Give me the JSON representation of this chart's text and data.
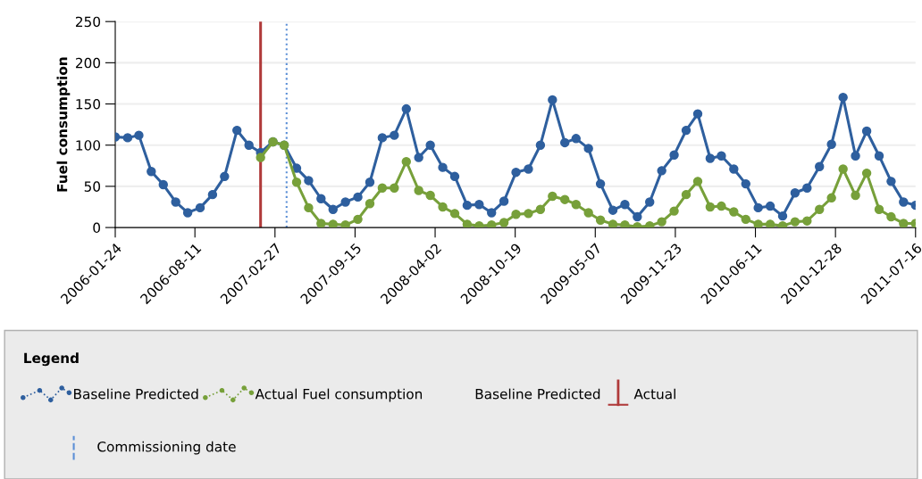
{
  "chart_data": {
    "type": "line",
    "ylabel": "Fuel consumption",
    "x": [
      "2006-01-24",
      "2006-02-24",
      "2006-03-24",
      "2006-04-24",
      "2006-05-24",
      "2006-06-24",
      "2006-07-24",
      "2006-08-24",
      "2006-09-24",
      "2006-10-24",
      "2006-11-24",
      "2006-12-24",
      "2007-01-22",
      "2007-02-22",
      "2007-03-22",
      "2007-04-22",
      "2007-05-22",
      "2007-06-22",
      "2007-07-22",
      "2007-08-22",
      "2007-09-22",
      "2007-10-22",
      "2007-11-22",
      "2007-12-22",
      "2008-01-21",
      "2008-02-21",
      "2008-03-21",
      "2008-04-21",
      "2008-05-21",
      "2008-06-21",
      "2008-07-21",
      "2008-08-21",
      "2008-09-21",
      "2008-10-21",
      "2008-11-21",
      "2008-12-21",
      "2009-01-20",
      "2009-02-20",
      "2009-03-20",
      "2009-04-20",
      "2009-05-20",
      "2009-06-20",
      "2009-07-20",
      "2009-08-20",
      "2009-09-20",
      "2009-10-20",
      "2009-11-20",
      "2009-12-20",
      "2010-01-18",
      "2010-02-18",
      "2010-03-18",
      "2010-04-18",
      "2010-05-18",
      "2010-06-18",
      "2010-07-18",
      "2010-08-18",
      "2010-09-18",
      "2010-10-18",
      "2010-11-18",
      "2010-12-18",
      "2011-01-16",
      "2011-02-16",
      "2011-03-16",
      "2011-04-16",
      "2011-05-16",
      "2011-06-16",
      "2011-07-16"
    ],
    "series": [
      {
        "name": "Baseline Predicted",
        "color": "#2e5f9e",
        "values": [
          110,
          109,
          112,
          68,
          52,
          31,
          18,
          24,
          40,
          62,
          118,
          100,
          91,
          104,
          100,
          72,
          57,
          35,
          22,
          31,
          37,
          55,
          109,
          112,
          144,
          85,
          100,
          73,
          62,
          27,
          28,
          18,
          32,
          67,
          71,
          100,
          155,
          103,
          108,
          96,
          53,
          21,
          28,
          13,
          31,
          69,
          88,
          118,
          138,
          84,
          87,
          71,
          53,
          24,
          26,
          14,
          42,
          48,
          74,
          101,
          158,
          87,
          117,
          87,
          56,
          31,
          27
        ]
      },
      {
        "name": "Actual Fuel consumption",
        "color": "#77a03a",
        "values": [
          null,
          null,
          null,
          null,
          null,
          null,
          null,
          null,
          null,
          null,
          null,
          null,
          85,
          104,
          100,
          55,
          24,
          5,
          4,
          3,
          10,
          29,
          48,
          48,
          80,
          45,
          39,
          25,
          17,
          4,
          2,
          3,
          6,
          16,
          17,
          22,
          38,
          34,
          28,
          18,
          9,
          4,
          3,
          1,
          2,
          7,
          20,
          40,
          56,
          25,
          26,
          19,
          10,
          4,
          4,
          2,
          7,
          8,
          22,
          36,
          71,
          39,
          66,
          22,
          13,
          5,
          5
        ]
      }
    ],
    "xlim": [
      "2006-01-24",
      "2011-07-16"
    ],
    "xticks": [
      {
        "value": "2006-01-24",
        "label": "2006-01-24"
      },
      {
        "value": "2006-08-11",
        "label": "2006-08-11"
      },
      {
        "value": "2007-02-27",
        "label": "2007-02-27"
      },
      {
        "value": "2007-09-15",
        "label": "2007-09-15"
      },
      {
        "value": "2008-04-02",
        "label": "2008-04-02"
      },
      {
        "value": "2008-10-19",
        "label": "2008-10-19"
      },
      {
        "value": "2009-05-07",
        "label": "2009-05-07"
      },
      {
        "value": "2009-11-23",
        "label": "2009-11-23"
      },
      {
        "value": "2010-06-11",
        "label": "2010-06-11"
      },
      {
        "value": "2010-12-28",
        "label": "2010-12-28"
      },
      {
        "value": "2011-07-16",
        "label": "2011-07-16"
      }
    ],
    "ylim": [
      0,
      250
    ],
    "yticks": [
      0,
      50,
      100,
      150,
      200,
      250
    ],
    "ref_lines": [
      {
        "axis": "x",
        "value": "2007-01-22",
        "label": "Actual",
        "color": "#b03a3a",
        "line_style": "solid"
      },
      {
        "axis": "x",
        "value": "2007-03-28",
        "label": "Commissioning date",
        "color": "#5b8fd6",
        "line_style": "dotted"
      }
    ],
    "annotations": [
      "Baseline Predicted"
    ],
    "legend_title": "Legend",
    "legend": "bottom",
    "grid": "y",
    "marker": "circle",
    "line_style": "solid"
  }
}
